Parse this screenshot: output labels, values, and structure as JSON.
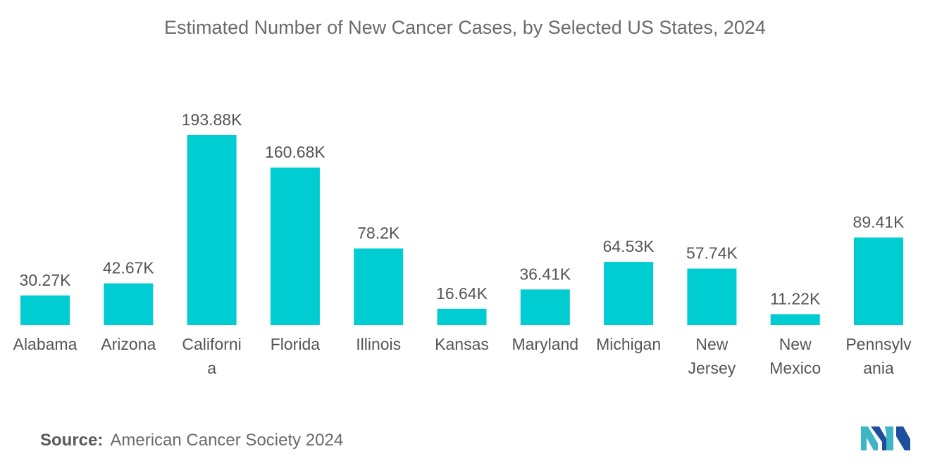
{
  "chart_data": {
    "type": "bar",
    "title": "Estimated Number of New Cancer Cases, by Selected US States, 2024",
    "categories": [
      "Alabama",
      "Arizona",
      "Californi a",
      "Florida",
      "Illinois",
      "Kansas",
      "Maryland",
      "Michigan",
      "New Jersey",
      "New Mexico",
      "Pennsylv ania"
    ],
    "category_lines": [
      [
        "Alabama"
      ],
      [
        "Arizona"
      ],
      [
        "Californi",
        "a"
      ],
      [
        "Florida"
      ],
      [
        "Illinois"
      ],
      [
        "Kansas"
      ],
      [
        "Maryland"
      ],
      [
        "Michigan"
      ],
      [
        "New",
        "Jersey"
      ],
      [
        "New",
        "Mexico"
      ],
      [
        "Pennsylv",
        "ania"
      ]
    ],
    "values": [
      30.27,
      42.67,
      193.88,
      160.68,
      78.2,
      16.64,
      36.41,
      64.53,
      57.74,
      11.22,
      89.41
    ],
    "value_labels": [
      "30.27K",
      "42.67K",
      "193.88K",
      "160.68K",
      "78.2K",
      "16.64K",
      "36.41K",
      "64.53K",
      "57.74K",
      "11.22K",
      "89.41K"
    ],
    "unit": "K",
    "xlabel": "",
    "ylabel": "",
    "ylim": [
      0,
      193.88
    ],
    "grid": false,
    "legend": "none",
    "bar_color": "#00cdd2"
  },
  "source": {
    "label": "Source:",
    "text": "American Cancer Society 2024"
  },
  "logo": {
    "icon": "mordor-intelligence-logo-icon",
    "colors": [
      "#1f4e9a",
      "#3fb5c5"
    ]
  }
}
